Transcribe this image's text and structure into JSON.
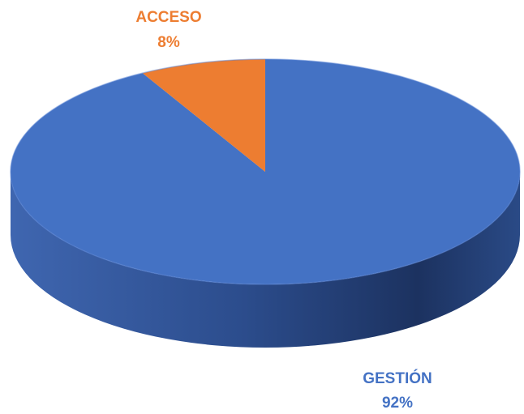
{
  "chart_data": {
    "type": "pie",
    "slices": [
      {
        "category": "GESTIÓN",
        "percent_label": "92%",
        "value": 92,
        "color": "#4472C4"
      },
      {
        "category": "ACCESO",
        "percent_label": "8%",
        "value": 8,
        "color": "#ED7D31"
      }
    ]
  }
}
